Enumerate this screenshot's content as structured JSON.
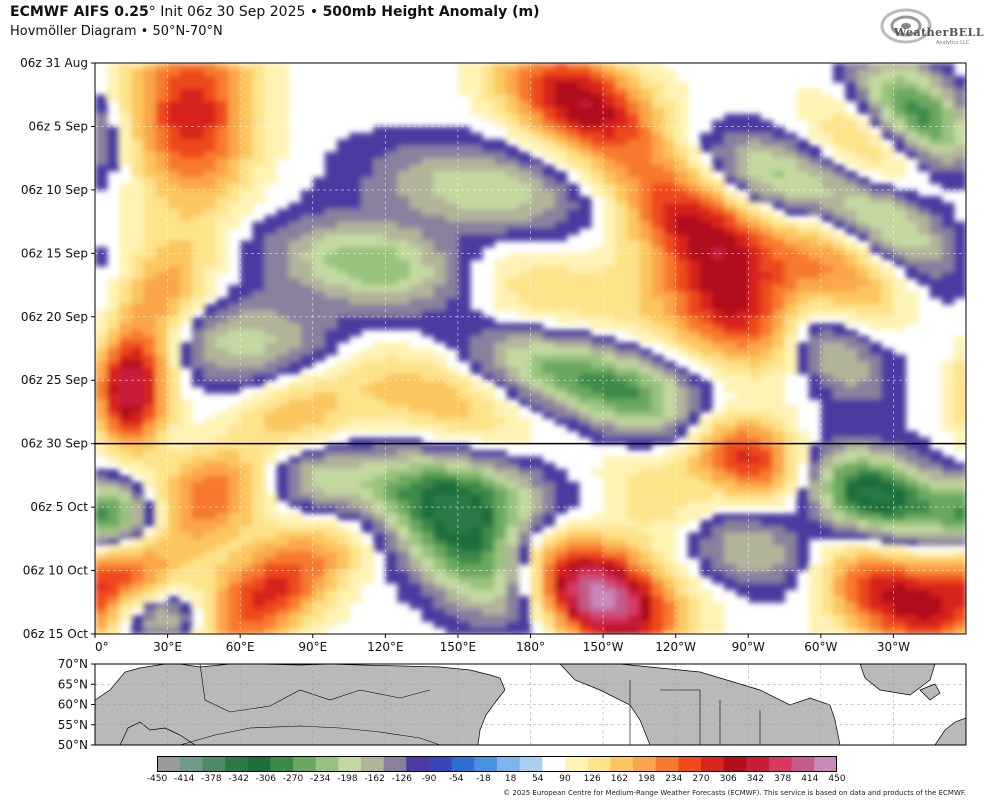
{
  "header": {
    "title_bold": "ECMWF AIFS 0.25",
    "title_deg": "°",
    "title_init": " Init 06z 30 Sep 2025 • ",
    "title_field": "500mb Height Anomaly (m)",
    "subtitle": "Hovmöller Diagram • 50°N-70°N"
  },
  "logo": {
    "text": "WeatherBELL",
    "sub": "Analytics LLC"
  },
  "credit": "© 2025 European Centre for Medium-Range Weather Forecasts (ECMWF). This service is based on data and products of the ECMWF.",
  "chart_data": {
    "type": "heatmap",
    "title": "500mb Height Anomaly (m)",
    "y_axis": {
      "labels": [
        "06z 31 Aug",
        "06z 5 Sep",
        "06z 10 Sep",
        "06z 15 Sep",
        "06z 20 Sep",
        "06z 25 Sep",
        "06z 30 Sep",
        "06z 5 Oct",
        "06z 10 Oct",
        "06z 15 Oct"
      ],
      "range": [
        "06z 31 Aug",
        "06z 15 Oct"
      ],
      "init_line": "06z 30 Sep"
    },
    "x_axis": {
      "labels": [
        "0°",
        "30°E",
        "60°E",
        "90°E",
        "120°E",
        "150°E",
        "180°",
        "150°W",
        "120°W",
        "90°W",
        "60°W",
        "30°W"
      ],
      "range_deg_east": [
        0,
        360
      ]
    },
    "map_lat_labels": [
      "70°N",
      "65°N",
      "60°N",
      "55°N",
      "50°N"
    ],
    "colorbar": {
      "levels": [
        -450,
        -414,
        -378,
        -342,
        -306,
        -270,
        -234,
        -198,
        -162,
        -126,
        -90,
        -54,
        -18,
        18,
        54,
        90,
        126,
        162,
        198,
        234,
        270,
        306,
        342,
        378,
        414,
        450
      ],
      "colors": [
        "#9a9a9a",
        "#6f9a8a",
        "#4f8a68",
        "#2c7a4a",
        "#1e6e3c",
        "#3c8a4a",
        "#6aa860",
        "#98c27e",
        "#c3d9a0",
        "#b2b49a",
        "#8a809e",
        "#4c3aa0",
        "#3a45b8",
        "#2c6ed2",
        "#4a90e0",
        "#7db4ea",
        "#aacdf2",
        "#ffffff",
        "#fff3b4",
        "#fde38a",
        "#fcc65e",
        "#fba64a",
        "#f7792e",
        "#ee4a1a",
        "#d8241a",
        "#b0101a",
        "#c81e3c",
        "#d63a62",
        "#c25a8a",
        "#c88ab8"
      ],
      "grid": true
    },
    "features": [
      {
        "name": "positive",
        "lon": 40,
        "t": 4,
        "v": 260,
        "sx": 18,
        "sy": 5,
        "tilt": 0.0
      },
      {
        "name": "positive",
        "lon": 25,
        "t": 20,
        "v": 200,
        "sx": 14,
        "sy": 4,
        "tilt": -0.5
      },
      {
        "name": "positive",
        "lon": 15,
        "t": 26,
        "v": 300,
        "sx": 10,
        "sy": 3,
        "tilt": 0.0
      },
      {
        "name": "positive",
        "lon": 60,
        "t": 32,
        "v": 220,
        "sx": 20,
        "sy": 5,
        "tilt": -1.5
      },
      {
        "name": "positive",
        "lon": 10,
        "t": 40,
        "v": 180,
        "sx": 15,
        "sy": 3,
        "tilt": -1.0
      },
      {
        "name": "positive",
        "lon": 70,
        "t": 42,
        "v": 250,
        "sx": 18,
        "sy": 4,
        "tilt": -1.5
      },
      {
        "name": "positive",
        "lon": 200,
        "t": 3,
        "v": 300,
        "sx": 20,
        "sy": 3,
        "tilt": 1.0
      },
      {
        "name": "positive",
        "lon": 250,
        "t": 13,
        "v": 280,
        "sx": 20,
        "sy": 4,
        "tilt": 1.2
      },
      {
        "name": "positive",
        "lon": 270,
        "t": 20,
        "v": 240,
        "sx": 25,
        "sy": 3,
        "tilt": 1.0
      },
      {
        "name": "positive",
        "lon": 175,
        "t": 18,
        "v": 120,
        "sx": 30,
        "sy": 3,
        "tilt": 1.5
      },
      {
        "name": "positive",
        "lon": 140,
        "t": 26,
        "v": 130,
        "sx": 25,
        "sy": 3,
        "tilt": 1.5
      },
      {
        "name": "positive",
        "lon": 200,
        "t": 40,
        "v": 240,
        "sx": 25,
        "sy": 3,
        "tilt": 1.0
      },
      {
        "name": "positive",
        "lon": 210,
        "t": 43,
        "v": 300,
        "sx": 18,
        "sy": 2.5,
        "tilt": 1.0
      },
      {
        "name": "positive",
        "lon": 270,
        "t": 31,
        "v": 280,
        "sx": 18,
        "sy": 2.5,
        "tilt": 1.0
      },
      {
        "name": "positive",
        "lon": 330,
        "t": 42,
        "v": 280,
        "sx": 20,
        "sy": 3,
        "tilt": 1.0
      },
      {
        "name": "positive",
        "lon": 310,
        "t": 16,
        "v": 150,
        "sx": 20,
        "sy": 3,
        "tilt": 1.0
      },
      {
        "name": "positive",
        "lon": 320,
        "t": 7,
        "v": 130,
        "sx": 15,
        "sy": 3,
        "tilt": 1.0
      },
      {
        "name": "positive",
        "lon": 240,
        "t": 36,
        "v": 160,
        "sx": 18,
        "sy": 3,
        "tilt": 1.0
      },
      {
        "name": "negative",
        "lon": 120,
        "t": 16,
        "v": -220,
        "sx": 30,
        "sy": 2.5,
        "tilt": 1.3
      },
      {
        "name": "negative",
        "lon": 160,
        "t": 10,
        "v": -160,
        "sx": 30,
        "sy": 2.5,
        "tilt": 1.3
      },
      {
        "name": "negative",
        "lon": 190,
        "t": 24,
        "v": -200,
        "sx": 25,
        "sy": 2.5,
        "tilt": 1.3
      },
      {
        "name": "negative",
        "lon": 60,
        "t": 22,
        "v": -150,
        "sx": 40,
        "sy": 2.5,
        "tilt": 1.0
      },
      {
        "name": "negative",
        "lon": 150,
        "t": 34,
        "v": -220,
        "sx": 30,
        "sy": 2.5,
        "tilt": 1.3
      },
      {
        "name": "negative",
        "lon": 160,
        "t": 39,
        "v": -300,
        "sx": 20,
        "sy": 3.5,
        "tilt": 1.0
      },
      {
        "name": "negative",
        "lon": 10,
        "t": 36,
        "v": -280,
        "sx": 15,
        "sy": 2,
        "tilt": 0.5
      },
      {
        "name": "negative",
        "lon": 30,
        "t": 44,
        "v": -180,
        "sx": 15,
        "sy": 1.5,
        "tilt": 0.0
      },
      {
        "name": "negative",
        "lon": 320,
        "t": 34,
        "v": -330,
        "sx": 20,
        "sy": 2.5,
        "tilt": 1.0
      },
      {
        "name": "negative",
        "lon": 300,
        "t": 22,
        "v": -220,
        "sx": 15,
        "sy": 3,
        "tilt": 1.0
      },
      {
        "name": "negative",
        "lon": 340,
        "t": 4,
        "v": -260,
        "sx": 15,
        "sy": 3,
        "tilt": 1.0
      },
      {
        "name": "negative",
        "lon": 330,
        "t": 13,
        "v": -200,
        "sx": 15,
        "sy": 3,
        "tilt": 1.0
      },
      {
        "name": "negative",
        "lon": 280,
        "t": 9,
        "v": -180,
        "sx": 20,
        "sy": 2.5,
        "tilt": 1.2
      },
      {
        "name": "negative",
        "lon": 260,
        "t": 38,
        "v": -200,
        "sx": 25,
        "sy": 2.5,
        "tilt": 1.2
      },
      {
        "name": "negative",
        "lon": 230,
        "t": 27,
        "v": -180,
        "sx": 20,
        "sy": 2.5,
        "tilt": 1.2
      },
      {
        "name": "negative",
        "lon": 80,
        "t": 32,
        "v": -170,
        "sx": 20,
        "sy": 2.5,
        "tilt": 1.2
      }
    ]
  }
}
